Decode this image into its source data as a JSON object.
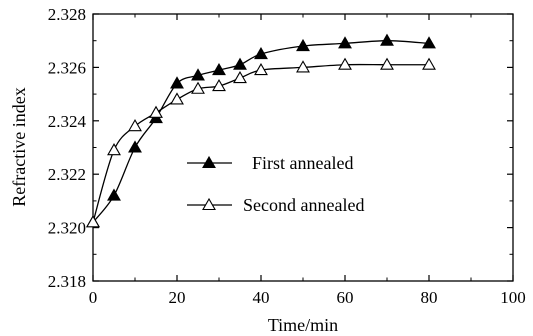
{
  "chart_data": {
    "type": "line",
    "xlabel": "Time/min",
    "ylabel": "Refractive index",
    "xlim": [
      0,
      100
    ],
    "ylim": [
      2.318,
      2.328
    ],
    "x_ticks": [
      "0",
      "20",
      "40",
      "60",
      "80",
      "100"
    ],
    "y_ticks": [
      "2.318",
      "2.320",
      "2.322",
      "2.324",
      "2.326",
      "2.328"
    ],
    "grid": false,
    "legend_position": "center",
    "series": [
      {
        "name": "First annealed",
        "marker": "filled-triangle",
        "color": "#000000",
        "x": [
          0,
          5,
          10,
          15,
          20,
          25,
          30,
          35,
          40,
          50,
          60,
          70,
          80
        ],
        "y": [
          2.3202,
          2.3212,
          2.323,
          2.3241,
          2.3254,
          2.3257,
          2.3259,
          2.3261,
          2.3265,
          2.3268,
          2.3269,
          2.327,
          2.3269
        ]
      },
      {
        "name": "Second annealed",
        "marker": "open-triangle",
        "color": "#000000",
        "x": [
          0,
          5,
          10,
          15,
          20,
          25,
          30,
          35,
          40,
          50,
          60,
          70,
          80
        ],
        "y": [
          2.3202,
          2.3229,
          2.3238,
          2.3243,
          2.3248,
          2.3252,
          2.3253,
          2.3256,
          2.3259,
          2.326,
          2.3261,
          2.3261,
          2.3261
        ]
      }
    ]
  }
}
